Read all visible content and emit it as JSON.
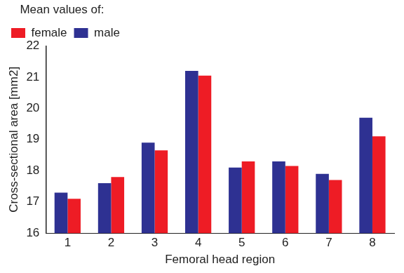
{
  "chart_data": {
    "type": "bar",
    "legend_title": "Mean values of:",
    "x_label": "Femoral head region",
    "y_label": "Cross-sectional area [mm2]",
    "categories": [
      "1",
      "2",
      "3",
      "4",
      "5",
      "6",
      "7",
      "8"
    ],
    "series": [
      {
        "name": "male",
        "color": "#2e3192",
        "values": [
          17.3,
          17.6,
          18.9,
          21.2,
          18.1,
          18.3,
          17.9,
          19.7
        ]
      },
      {
        "name": "female",
        "color": "#ee1c25",
        "values": [
          17.1,
          17.8,
          18.65,
          21.05,
          18.3,
          18.15,
          17.7,
          19.1
        ]
      }
    ],
    "ylim": [
      16,
      22
    ],
    "yticks": [
      16,
      17,
      18,
      19,
      20,
      21,
      22
    ],
    "grid": false,
    "legend": "top-left"
  }
}
